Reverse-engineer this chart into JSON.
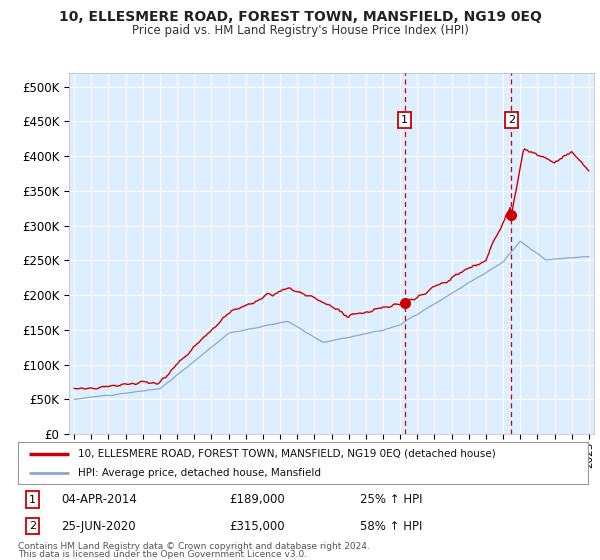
{
  "title": "10, ELLESMERE ROAD, FOREST TOWN, MANSFIELD, NG19 0EQ",
  "subtitle": "Price paid vs. HM Land Registry's House Price Index (HPI)",
  "background_color": "#ffffff",
  "plot_bg_color": "#ddeeff",
  "grid_color": "#ffffff",
  "red_line_color": "#cc0000",
  "blue_line_color": "#88aacc",
  "annotation1": {
    "label": "1",
    "date_x": 2014.27,
    "price": 189000,
    "text": "04-APR-2014",
    "amount": "£189,000",
    "pct": "25% ↑ HPI"
  },
  "annotation2": {
    "label": "2",
    "date_x": 2020.48,
    "price": 315000,
    "text": "25-JUN-2020",
    "amount": "£315,000",
    "pct": "58% ↑ HPI"
  },
  "legend_line1": "10, ELLESMERE ROAD, FOREST TOWN, MANSFIELD, NG19 0EQ (detached house)",
  "legend_line2": "HPI: Average price, detached house, Mansfield",
  "footer1": "Contains HM Land Registry data © Crown copyright and database right 2024.",
  "footer2": "This data is licensed under the Open Government Licence v3.0.",
  "ylim": [
    0,
    520000
  ],
  "xlim": [
    1994.7,
    2025.3
  ],
  "yticks": [
    0,
    50000,
    100000,
    150000,
    200000,
    250000,
    300000,
    350000,
    400000,
    450000,
    500000
  ],
  "ytick_labels": [
    "£0",
    "£50K",
    "£100K",
    "£150K",
    "£200K",
    "£250K",
    "£300K",
    "£350K",
    "£400K",
    "£450K",
    "£500K"
  ],
  "xticks": [
    1995,
    1996,
    1997,
    1998,
    1999,
    2000,
    2001,
    2002,
    2003,
    2004,
    2005,
    2006,
    2007,
    2008,
    2009,
    2010,
    2011,
    2012,
    2013,
    2014,
    2015,
    2016,
    2017,
    2018,
    2019,
    2020,
    2021,
    2022,
    2023,
    2024,
    2025
  ]
}
